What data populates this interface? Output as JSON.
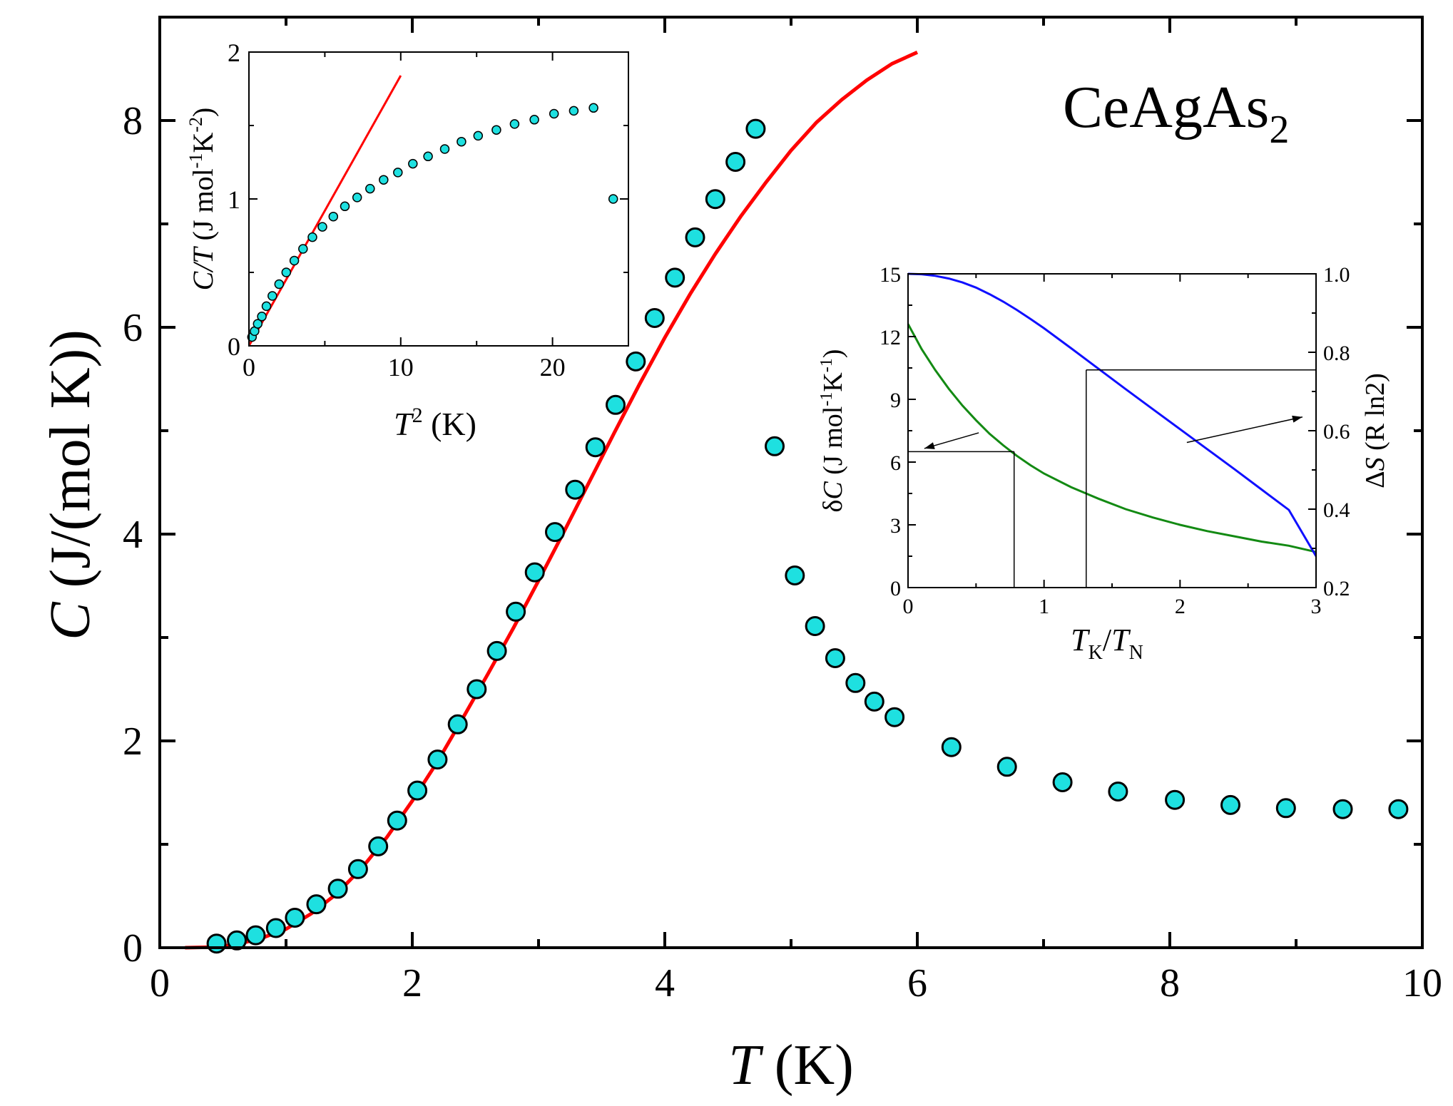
{
  "chart_data": [
    {
      "id": "main",
      "type": "scatter",
      "title": "CeAgAs",
      "title_subscript": "2",
      "xlabel": {
        "var": "T",
        "unit": " (K)"
      },
      "ylabel": {
        "var": "C",
        "unit": " (J/(mol K))"
      },
      "xlim": [
        0,
        10
      ],
      "ylim": [
        0,
        9
      ],
      "xticks": [
        0,
        2,
        4,
        6,
        8,
        10
      ],
      "xtick_labels": [
        "0",
        "2",
        "4",
        "6",
        "8",
        "10"
      ],
      "yticks": [
        0,
        2,
        4,
        6,
        8
      ],
      "ytick_labels": [
        "0",
        "2",
        "4",
        "6",
        "8"
      ],
      "grid": false,
      "series": [
        {
          "name": "C data",
          "kind": "points",
          "color": "#1ee0e0",
          "x": [
            0.45,
            0.61,
            0.76,
            0.92,
            1.07,
            1.24,
            1.41,
            1.57,
            1.73,
            1.88,
            2.04,
            2.2,
            2.36,
            2.51,
            2.67,
            2.82,
            2.97,
            3.13,
            3.29,
            3.45,
            3.61,
            3.77,
            3.92,
            4.08,
            4.24,
            4.4,
            4.56,
            4.72,
            4.87,
            5.03,
            5.19,
            5.35,
            5.51,
            5.66,
            5.82,
            6.27,
            6.71,
            7.15,
            7.59,
            8.04,
            8.48,
            8.92,
            9.37,
            9.81
          ],
          "y": [
            0.04,
            0.07,
            0.12,
            0.19,
            0.29,
            0.42,
            0.57,
            0.76,
            0.98,
            1.23,
            1.52,
            1.82,
            2.16,
            2.5,
            2.87,
            3.25,
            3.63,
            4.02,
            4.43,
            4.84,
            5.25,
            5.67,
            6.09,
            6.48,
            6.87,
            7.24,
            7.6,
            7.92,
            4.85,
            3.6,
            3.11,
            2.8,
            2.56,
            2.38,
            2.23,
            1.94,
            1.75,
            1.6,
            1.51,
            1.43,
            1.38,
            1.35,
            1.34,
            1.34
          ]
        },
        {
          "name": "fit",
          "kind": "line",
          "color": "#ff0000",
          "x": [
            0.2,
            0.4,
            0.6,
            0.8,
            1.0,
            1.2,
            1.4,
            1.6,
            1.8,
            2.0,
            2.2,
            2.4,
            2.6,
            2.8,
            3.0,
            3.2,
            3.4,
            3.6,
            3.8,
            4.0,
            4.2,
            4.4,
            4.6,
            4.8,
            5.0,
            5.2,
            5.4,
            5.6,
            5.8,
            6.0
          ],
          "y": [
            0.0,
            0.005,
            0.03,
            0.09,
            0.18,
            0.33,
            0.52,
            0.77,
            1.07,
            1.42,
            1.8,
            2.22,
            2.65,
            3.09,
            3.55,
            4.02,
            4.5,
            4.98,
            5.45,
            5.9,
            6.32,
            6.71,
            7.07,
            7.4,
            7.71,
            7.98,
            8.2,
            8.39,
            8.55,
            8.66
          ]
        }
      ]
    },
    {
      "id": "inset_left",
      "type": "scatter",
      "xlabel": {
        "var": "T",
        "sup": "2",
        "unit": " (K)"
      },
      "ylabel": {
        "var": "C/T",
        "unit": " (J mol",
        "sup1": "-1",
        "mid": "K",
        "sup2": "-2",
        "end": ")"
      },
      "xlim": [
        0,
        25
      ],
      "ylim": [
        0,
        2
      ],
      "xticks": [
        0,
        10,
        20
      ],
      "xtick_labels": [
        "0",
        "10",
        "20"
      ],
      "yticks": [
        0,
        1,
        2
      ],
      "ytick_labels": [
        "0",
        "1",
        "2"
      ],
      "series": [
        {
          "name": "C/T data",
          "kind": "points",
          "color": "#1ee0e0",
          "x": [
            0.2,
            0.37,
            0.58,
            0.85,
            1.15,
            1.54,
            1.99,
            2.46,
            2.99,
            3.56,
            4.18,
            4.84,
            5.56,
            6.32,
            7.13,
            7.98,
            8.87,
            9.81,
            10.8,
            11.8,
            12.9,
            14.0,
            15.1,
            16.3,
            17.5,
            18.8,
            20.1,
            21.4,
            22.7,
            24.0
          ],
          "y": [
            0.06,
            0.1,
            0.15,
            0.2,
            0.27,
            0.34,
            0.42,
            0.5,
            0.58,
            0.66,
            0.74,
            0.81,
            0.88,
            0.95,
            1.01,
            1.07,
            1.13,
            1.18,
            1.24,
            1.29,
            1.34,
            1.39,
            1.43,
            1.47,
            1.51,
            1.54,
            1.58,
            1.6,
            1.62,
            1.0
          ]
        },
        {
          "name": "linear fit",
          "kind": "line",
          "color": "#ff0000",
          "x": [
            0,
            10
          ],
          "y": [
            0.0,
            1.84
          ]
        }
      ]
    },
    {
      "id": "inset_right",
      "type": "line",
      "xlabel": {
        "var1": "T",
        "sub1": "K",
        "slash": "/",
        "var2": "T",
        "sub2": "N"
      },
      "ylabel_left": {
        "pre": "δ",
        "var": "C",
        "unit": " (J mol",
        "sup1": "-1",
        "mid": "K",
        "sup2": "-1",
        "end": ")"
      },
      "ylabel_right": {
        "pre": "Δ",
        "var": "S",
        "unit": " (R ln2)"
      },
      "xlim": [
        0,
        3
      ],
      "ylim_left": [
        0,
        15
      ],
      "ylim_right": [
        0.2,
        1.0
      ],
      "xticks": [
        0,
        1,
        2,
        3
      ],
      "xtick_labels": [
        "0",
        "1",
        "2",
        "3"
      ],
      "yticks_left": [
        0,
        3,
        6,
        9,
        12,
        15
      ],
      "ytick_labels_left": [
        "0",
        "3",
        "6",
        "9",
        "12",
        "15"
      ],
      "yticks_right": [
        0.2,
        0.4,
        0.6,
        0.8,
        1.0
      ],
      "ytick_labels_right": [
        "0.2",
        "0.4",
        "0.6",
        "0.8",
        "1.0"
      ],
      "series": [
        {
          "name": "δC",
          "axis": "left",
          "color": "#138a13",
          "x": [
            0,
            0.1,
            0.2,
            0.3,
            0.4,
            0.5,
            0.6,
            0.7,
            0.8,
            0.9,
            1.0,
            1.2,
            1.4,
            1.6,
            1.8,
            2.0,
            2.2,
            2.4,
            2.6,
            2.8,
            3.0
          ],
          "y": [
            12.6,
            11.4,
            10.4,
            9.5,
            8.7,
            8.0,
            7.35,
            6.8,
            6.3,
            5.85,
            5.45,
            4.8,
            4.25,
            3.75,
            3.35,
            3.0,
            2.7,
            2.45,
            2.2,
            2.0,
            1.7
          ]
        },
        {
          "name": "ΔS",
          "axis": "right",
          "color": "#1010ff",
          "x": [
            0,
            0.1,
            0.2,
            0.3,
            0.4,
            0.5,
            0.6,
            0.7,
            0.8,
            0.9,
            1.0,
            1.2,
            1.4,
            1.6,
            1.8,
            2.0,
            2.2,
            2.4,
            2.6,
            2.8,
            3.0
          ],
          "y": [
            1.0,
            0.999,
            0.995,
            0.988,
            0.978,
            0.965,
            0.948,
            0.929,
            0.908,
            0.885,
            0.861,
            0.81,
            0.758,
            0.706,
            0.655,
            0.604,
            0.553,
            0.502,
            0.45,
            0.398,
            0.28
          ]
        }
      ],
      "reference_lines": [
        {
          "axis": "left",
          "x": 0.78,
          "y": 6.5
        },
        {
          "axis": "right",
          "x": 1.31,
          "y": 0.755
        }
      ],
      "arrows": [
        {
          "axis": "left",
          "from": [
            0.52,
            7.4
          ],
          "to": [
            0.12,
            6.65
          ]
        },
        {
          "axis": "right",
          "from": [
            2.05,
            0.57
          ],
          "to": [
            2.9,
            0.635
          ]
        }
      ]
    }
  ]
}
